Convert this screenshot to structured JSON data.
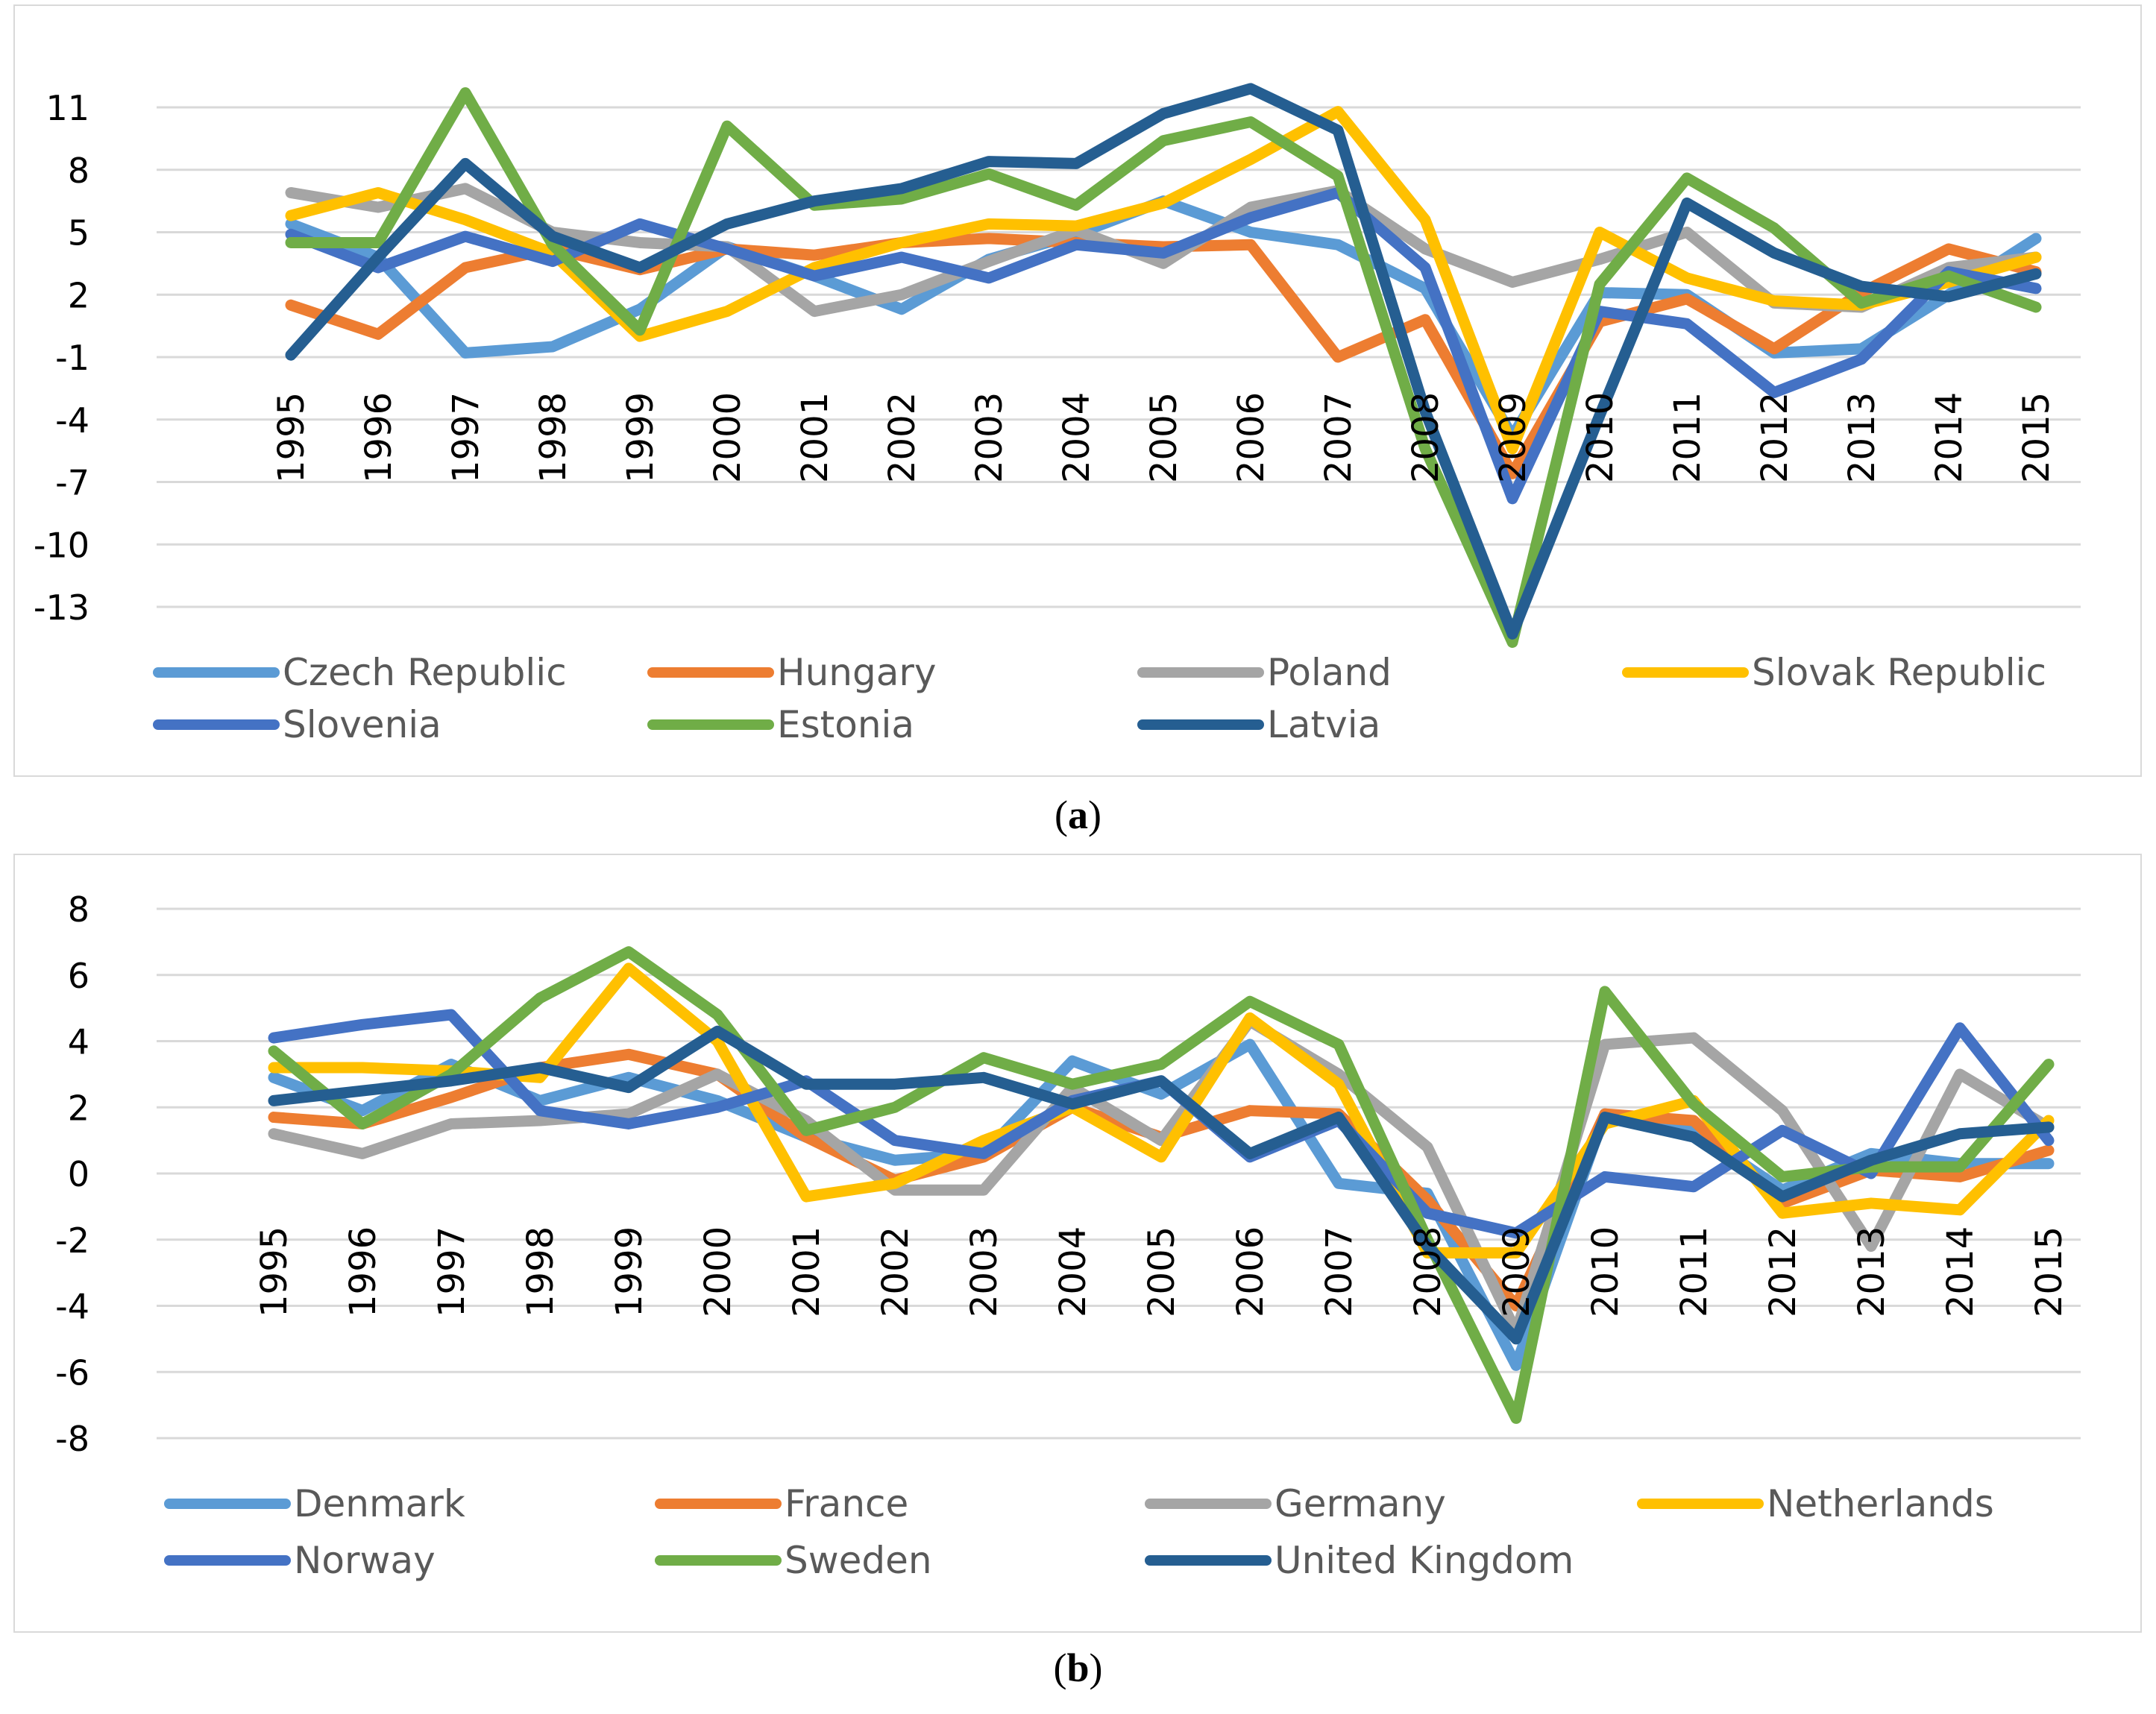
{
  "chart_data": [
    {
      "id": "a",
      "type": "line",
      "caption_letter": "a",
      "categories": [
        "1995",
        "1996",
        "1997",
        "1998",
        "1999",
        "2000",
        "2001",
        "2002",
        "2003",
        "2004",
        "2005",
        "2006",
        "2007",
        "2008",
        "2009",
        "2010",
        "2011",
        "2012",
        "2013",
        "2014",
        "2015"
      ],
      "ylim": [
        -13,
        12.5
      ],
      "yticks": [
        11,
        8,
        5,
        2,
        -1,
        -4,
        -7,
        -10,
        -13
      ],
      "ytick_labels": [
        "11",
        "8",
        "5",
        "2",
        "-1",
        "-4",
        "-7",
        "-10",
        "-13"
      ],
      "grid": true,
      "legend_position": "bottom",
      "series": [
        {
          "name": "Czech Republic",
          "color": "#5b9bd5",
          "values": [
            5.4,
            3.8,
            -0.8,
            -0.5,
            1.3,
            4.3,
            2.9,
            1.3,
            3.7,
            4.9,
            6.5,
            5.0,
            4.4,
            2.3,
            -4.8,
            2.1,
            2.0,
            -0.8,
            -0.6,
            2.0,
            4.7
          ]
        },
        {
          "name": "Hungary",
          "color": "#ed7d31",
          "values": [
            1.5,
            0.1,
            3.3,
            4.2,
            3.2,
            4.2,
            3.9,
            4.5,
            4.7,
            4.5,
            4.3,
            4.4,
            -1.0,
            0.8,
            -6.6,
            0.7,
            1.8,
            -0.6,
            2.1,
            4.2,
            3.1
          ]
        },
        {
          "name": "Poland",
          "color": "#a5a5a5",
          "values": [
            6.9,
            6.2,
            7.1,
            5.0,
            4.5,
            4.3,
            1.2,
            2.0,
            3.6,
            5.1,
            3.5,
            6.2,
            7.0,
            4.2,
            2.6,
            3.7,
            5.0,
            1.6,
            1.4,
            3.3,
            3.8
          ]
        },
        {
          "name": "Slovak Republic",
          "color": "#ffc000",
          "values": [
            5.8,
            6.9,
            5.6,
            4.0,
            0.0,
            1.2,
            3.3,
            4.5,
            5.4,
            5.3,
            6.4,
            8.5,
            10.8,
            5.6,
            -5.4,
            5.0,
            2.8,
            1.7,
            1.5,
            2.6,
            3.8
          ]
        },
        {
          "name": "Slovenia",
          "color": "#4472c4",
          "values": [
            4.9,
            3.3,
            4.8,
            3.6,
            5.4,
            4.2,
            2.9,
            3.8,
            2.8,
            4.4,
            4.0,
            5.7,
            6.9,
            3.3,
            -7.8,
            1.2,
            0.6,
            -2.7,
            -1.1,
            3.1,
            2.3
          ]
        },
        {
          "name": "Estonia",
          "color": "#70ad47",
          "values": [
            4.5,
            4.5,
            11.7,
            4.4,
            0.3,
            10.1,
            6.3,
            6.6,
            7.8,
            6.3,
            9.4,
            10.3,
            7.7,
            -5.4,
            -14.7,
            2.5,
            7.6,
            5.2,
            1.6,
            2.9,
            1.4
          ]
        },
        {
          "name": "Latvia",
          "color": "#255e91",
          "values": [
            -0.9,
            3.8,
            8.3,
            4.8,
            3.3,
            5.4,
            6.5,
            7.1,
            8.4,
            8.3,
            10.7,
            11.9,
            9.9,
            -3.6,
            -14.3,
            -3.8,
            6.4,
            4.0,
            2.4,
            1.9,
            3.0
          ]
        }
      ]
    },
    {
      "id": "b",
      "type": "line",
      "caption_letter": "b",
      "categories": [
        "1995",
        "1996",
        "1997",
        "1998",
        "1999",
        "2000",
        "2001",
        "2002",
        "2003",
        "2004",
        "2005",
        "2006",
        "2007",
        "2008",
        "2009",
        "2010",
        "2011",
        "2012",
        "2013",
        "2014",
        "2015"
      ],
      "ylim": [
        -8,
        8
      ],
      "yticks": [
        8,
        6,
        4,
        2,
        0,
        -2,
        -4,
        -6,
        -8
      ],
      "ytick_labels": [
        "8",
        "6",
        "4",
        "2",
        "0",
        "-2",
        "-4",
        "-6",
        "-8"
      ],
      "grid": true,
      "legend_position": "bottom",
      "series": [
        {
          "name": "Denmark",
          "color": "#5b9bd5",
          "values": [
            2.9,
            1.9,
            3.3,
            2.2,
            2.9,
            2.2,
            1.1,
            0.4,
            0.6,
            3.4,
            2.4,
            3.9,
            -0.3,
            -0.6,
            -5.8,
            1.8,
            1.3,
            -0.5,
            0.6,
            0.3,
            0.3
          ]
        },
        {
          "name": "France",
          "color": "#ed7d31",
          "values": [
            1.7,
            1.5,
            2.3,
            3.2,
            3.6,
            3.0,
            1.1,
            -0.2,
            0.5,
            2.0,
            1.1,
            1.9,
            1.8,
            -0.8,
            -4.0,
            1.8,
            1.6,
            -0.9,
            0.1,
            -0.1,
            0.7
          ]
        },
        {
          "name": "Germany",
          "color": "#a5a5a5",
          "values": [
            1.2,
            0.6,
            1.5,
            1.6,
            1.8,
            3.0,
            1.6,
            -0.5,
            -0.5,
            2.6,
            1.0,
            4.6,
            3.0,
            0.8,
            -4.8,
            3.9,
            4.1,
            1.9,
            -2.2,
            3.0,
            1.4
          ]
        },
        {
          "name": "Netherlands",
          "color": "#ffc000",
          "values": [
            3.2,
            3.2,
            3.1,
            2.9,
            6.2,
            4.0,
            -0.7,
            -0.3,
            1.0,
            2.0,
            0.5,
            4.7,
            2.7,
            -2.4,
            -2.4,
            1.5,
            2.2,
            -1.2,
            -0.9,
            -1.1,
            1.6
          ]
        },
        {
          "name": "Norway",
          "color": "#4472c4",
          "values": [
            4.1,
            4.5,
            4.8,
            1.9,
            1.5,
            2.0,
            2.8,
            1.0,
            0.6,
            2.2,
            2.8,
            0.5,
            1.6,
            -1.2,
            -1.8,
            -0.1,
            -0.4,
            1.3,
            0.0,
            4.4,
            1.0
          ]
        },
        {
          "name": "Sweden",
          "color": "#70ad47",
          "values": [
            3.7,
            1.5,
            3.0,
            5.3,
            6.7,
            4.8,
            1.3,
            2.0,
            3.5,
            2.7,
            3.3,
            5.2,
            3.9,
            -2.0,
            -7.4,
            5.5,
            2.1,
            -0.1,
            0.2,
            0.2,
            3.3
          ]
        },
        {
          "name": "United Kingdom",
          "color": "#255e91",
          "values": [
            2.2,
            2.5,
            2.8,
            3.2,
            2.6,
            4.3,
            2.7,
            2.7,
            2.9,
            2.1,
            2.8,
            0.6,
            1.7,
            -2.2,
            -5.0,
            1.7,
            1.1,
            -0.7,
            0.4,
            1.2,
            1.4
          ]
        }
      ]
    }
  ]
}
